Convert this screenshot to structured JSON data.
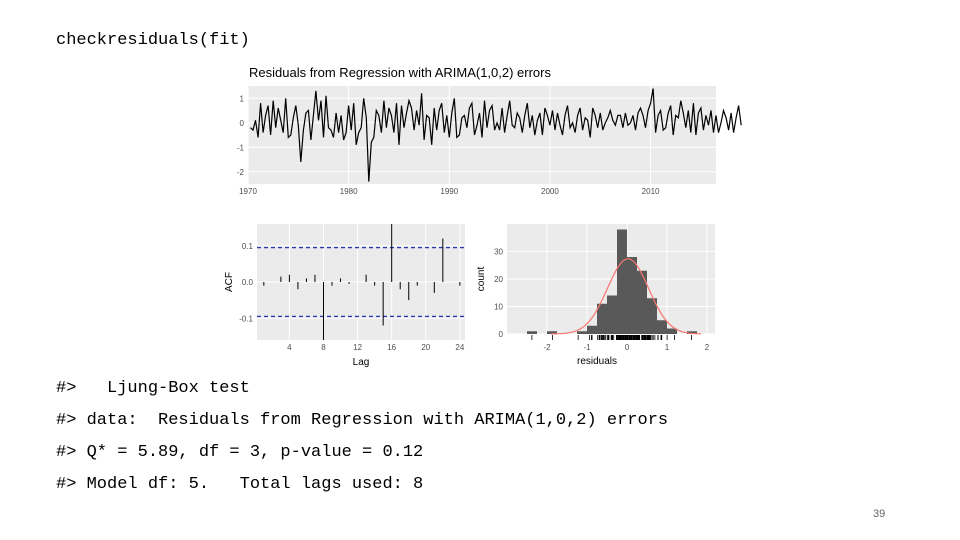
{
  "code_command": "checkresiduals(fit)",
  "output_lines": [
    "#>   Ljung-Box test",
    "#> data:  Residuals from Regression with ARIMA(1,0,2) errors",
    "#> Q* = 5.89, df = 3, p-value = 0.12",
    "#> Model df: 5.   Total lags used: 8"
  ],
  "slide_number": "39",
  "colors": {
    "panel_bg": "#ebebeb",
    "grid": "#ffffff",
    "line": "#000000",
    "bar": "#595959",
    "density": "#f8766d",
    "ci": "#2b3bb0"
  },
  "chart_data": [
    {
      "type": "line",
      "title": "Residuals from Regression with ARIMA(1,0,2) errors",
      "xlabel": "",
      "ylabel": "",
      "xlim": [
        1970,
        2016.5
      ],
      "ylim": [
        -2.5,
        1.5
      ],
      "x_ticks": [
        1970,
        1980,
        1990,
        2000,
        2010
      ],
      "x_tick_labels": [
        "1970",
        "1980",
        "1990",
        "2000",
        "2010"
      ],
      "y_ticks": [
        1,
        0,
        -1,
        -2
      ],
      "y_tick_labels": [
        "1",
        "0",
        "-1",
        "-2"
      ],
      "x_start": 1970.25,
      "x_step": 0.25,
      "values": [
        -0.2,
        -0.3,
        0.1,
        -0.6,
        0.8,
        -0.4,
        0.3,
        0.7,
        -0.5,
        0.9,
        -0.2,
        0.6,
        0.1,
        -0.4,
        1.0,
        -0.6,
        -0.5,
        0.2,
        0.7,
        -0.1,
        -1.6,
        -0.3,
        0.4,
        0.5,
        -0.7,
        0.3,
        1.3,
        0.1,
        0.9,
        -0.6,
        1.1,
        -0.2,
        -0.3,
        -0.6,
        0.4,
        -0.4,
        0.3,
        -0.7,
        -0.4,
        0.7,
        -0.3,
        0.8,
        -0.9,
        -0.4,
        -0.2,
        1.0,
        0.2,
        -2.4,
        -0.8,
        -0.6,
        0.5,
        0.3,
        -0.4,
        0.9,
        -0.2,
        0.6,
        0.3,
        -0.4,
        0.8,
        -0.9,
        0.7,
        -0.2,
        0.4,
        0.9,
        0.6,
        -0.3,
        0.5,
        -0.1,
        1.2,
        -0.7,
        0.3,
        0.2,
        -0.9,
        0.6,
        -0.3,
        0.5,
        0.8,
        -0.4,
        0.3,
        -0.6,
        0.4,
        1.0,
        -0.6,
        -0.5,
        0.2,
        0.3,
        -0.2,
        0.6,
        0.8,
        -0.5,
        -0.1,
        0.4,
        -0.6,
        0.9,
        -0.2,
        0.5,
        0.7,
        -0.3,
        0.0,
        -0.3,
        0.6,
        -0.4,
        0.3,
        0.9,
        -0.1,
        -0.2,
        0.4,
        0.2,
        -0.4,
        0.3,
        0.8,
        -0.2,
        0.3,
        -0.5,
        0.1,
        0.4,
        -0.5,
        0.6,
        0.3,
        -0.1,
        0.5,
        -0.3,
        0.4,
        -0.1,
        -0.5,
        0.3,
        0.7,
        -0.2,
        0.0,
        -0.4,
        0.3,
        0.6,
        -0.3,
        0.2,
        0.1,
        -0.6,
        0.6,
        0.3,
        -0.2,
        0.4,
        -0.3,
        0.0,
        0.2,
        0.5,
        0.1,
        -0.1,
        0.3,
        0.3,
        -0.2,
        0.4,
        -0.1,
        0.0,
        0.3,
        -0.3,
        0.4,
        0.6,
        0.3,
        -0.2,
        0.5,
        0.8,
        1.4,
        -0.4,
        0.3,
        0.5,
        -0.3,
        -0.2,
        0.4,
        0.7,
        -0.5,
        0.3,
        0.2,
        0.9,
        0.4,
        -0.2,
        0.5,
        -0.4,
        0.8,
        -0.5,
        0.4,
        0.6,
        -0.3,
        0.3,
        -0.1,
        0.5,
        -0.4,
        0.3,
        -0.4,
        0.0,
        0.5,
        0.2,
        -0.3,
        0.4,
        -0.4,
        0.2,
        0.7,
        -0.1
      ]
    },
    {
      "type": "bar",
      "subtype": "acf",
      "xlabel": "Lag",
      "ylabel": "ACF",
      "lags": [
        1,
        2,
        3,
        4,
        5,
        6,
        7,
        8,
        9,
        10,
        11,
        12,
        13,
        14,
        15,
        16,
        17,
        18,
        19,
        20,
        21,
        22,
        23,
        24
      ],
      "values": [
        -0.01,
        0.0,
        0.015,
        0.02,
        -0.02,
        0.01,
        0.02,
        -0.16,
        -0.01,
        0.01,
        -0.005,
        0.0,
        0.02,
        -0.01,
        -0.12,
        0.16,
        -0.02,
        -0.05,
        -0.01,
        0.0,
        -0.03,
        0.12,
        0.0,
        -0.01
      ],
      "ci": 0.095,
      "ylim": [
        -0.16,
        0.16
      ],
      "x_ticks": [
        4,
        8,
        12,
        16,
        20,
        24
      ],
      "x_tick_labels": [
        "4",
        "8",
        "12",
        "16",
        "20",
        "24"
      ],
      "y_ticks": [
        0.1,
        0.0,
        -0.1
      ],
      "y_tick_labels": [
        "0.1",
        "0.0",
        "-0.1"
      ]
    },
    {
      "type": "bar",
      "subtype": "histogram",
      "xlabel": "residuals",
      "ylabel": "count",
      "bin_width": 0.25,
      "bins_left": [
        -2.5,
        -2.25,
        -2.0,
        -1.75,
        -1.5,
        -1.25,
        -1.0,
        -0.75,
        -0.5,
        -0.25,
        0.0,
        0.25,
        0.5,
        0.75,
        1.0,
        1.25,
        1.5
      ],
      "counts": [
        1,
        0,
        1,
        0,
        0,
        1,
        3,
        11,
        14,
        38,
        28,
        23,
        13,
        5,
        2,
        0,
        1
      ],
      "xlim": [
        -3.0,
        2.2
      ],
      "ylim": [
        0,
        40
      ],
      "x_ticks": [
        -2,
        -1,
        0,
        1,
        2
      ],
      "x_tick_labels": [
        "-2",
        "-1",
        "0",
        "1",
        "2"
      ],
      "y_ticks": [
        30,
        20,
        10,
        0
      ],
      "y_tick_labels": [
        "30",
        "20",
        "10",
        "0"
      ]
    }
  ]
}
